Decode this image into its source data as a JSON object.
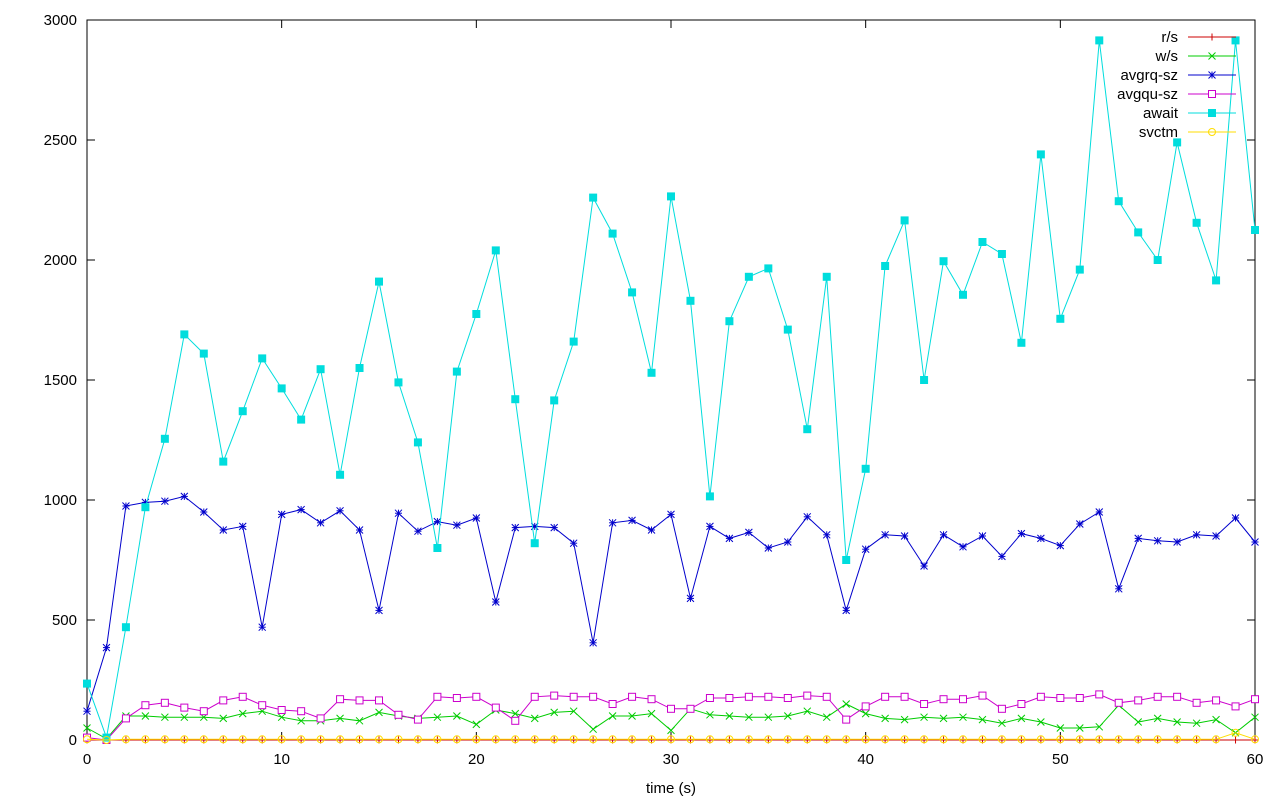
{
  "chart_data": {
    "type": "line",
    "title": "",
    "xlabel": "time (s)",
    "ylabel": "",
    "xlim": [
      0,
      60
    ],
    "ylim": [
      0,
      3000
    ],
    "x_ticks": [
      0,
      10,
      20,
      30,
      40,
      50,
      60
    ],
    "y_ticks": [
      0,
      500,
      1000,
      1500,
      2000,
      2500,
      3000
    ],
    "grid": false,
    "legend_position": "top-right",
    "x": [
      0,
      1,
      2,
      3,
      4,
      5,
      6,
      7,
      8,
      9,
      10,
      11,
      12,
      13,
      14,
      15,
      16,
      17,
      18,
      19,
      20,
      21,
      22,
      23,
      24,
      25,
      26,
      27,
      28,
      29,
      30,
      31,
      32,
      33,
      34,
      35,
      36,
      37,
      38,
      39,
      40,
      41,
      42,
      43,
      44,
      45,
      46,
      47,
      48,
      49,
      50,
      51,
      52,
      53,
      54,
      55,
      56,
      57,
      58,
      59,
      60
    ],
    "series": [
      {
        "name": "r/s",
        "color": "#cc0000",
        "marker": "plus",
        "values": [
          0,
          0,
          0,
          0,
          0,
          0,
          0,
          0,
          0,
          0,
          0,
          0,
          0,
          0,
          0,
          0,
          0,
          0,
          0,
          0,
          0,
          0,
          0,
          0,
          0,
          0,
          0,
          0,
          0,
          0,
          0,
          0,
          0,
          0,
          0,
          0,
          0,
          0,
          0,
          0,
          0,
          0,
          0,
          0,
          0,
          0,
          0,
          0,
          0,
          0,
          0,
          0,
          0,
          0,
          0,
          0,
          0,
          0,
          0,
          0,
          0
        ]
      },
      {
        "name": "w/s",
        "color": "#00cc00",
        "marker": "x",
        "values": [
          50,
          5,
          100,
          100,
          95,
          95,
          95,
          90,
          110,
          120,
          95,
          80,
          80,
          90,
          80,
          115,
          100,
          90,
          95,
          100,
          65,
          125,
          110,
          90,
          115,
          120,
          45,
          100,
          100,
          110,
          40,
          130,
          105,
          100,
          95,
          95,
          100,
          120,
          95,
          150,
          110,
          90,
          85,
          95,
          90,
          95,
          85,
          70,
          90,
          75,
          50,
          50,
          55,
          145,
          75,
          90,
          75,
          70,
          85,
          30,
          95
        ]
      },
      {
        "name": "avgrq-sz",
        "color": "#0000cc",
        "marker": "star",
        "values": [
          120,
          385,
          975,
          990,
          995,
          1015,
          950,
          875,
          890,
          470,
          940,
          960,
          905,
          955,
          875,
          540,
          945,
          870,
          910,
          895,
          925,
          575,
          885,
          890,
          885,
          820,
          405,
          905,
          915,
          875,
          940,
          590,
          890,
          840,
          865,
          800,
          825,
          930,
          855,
          540,
          795,
          855,
          850,
          725,
          855,
          805,
          850,
          765,
          860,
          840,
          810,
          900,
          950,
          630,
          840,
          830,
          825,
          855,
          850,
          925,
          825
        ]
      },
      {
        "name": "avgqu-sz",
        "color": "#cc00cc",
        "marker": "open-square",
        "values": [
          10,
          0,
          90,
          145,
          155,
          135,
          120,
          165,
          180,
          145,
          125,
          120,
          90,
          170,
          165,
          165,
          105,
          85,
          180,
          175,
          180,
          135,
          80,
          180,
          185,
          180,
          180,
          150,
          180,
          170,
          130,
          130,
          175,
          175,
          180,
          180,
          175,
          185,
          180,
          85,
          140,
          180,
          180,
          150,
          170,
          170,
          185,
          130,
          150,
          180,
          175,
          175,
          190,
          155,
          165,
          180,
          180,
          155,
          165,
          140,
          170
        ]
      },
      {
        "name": "await",
        "color": "#00dddd",
        "marker": "filled-square",
        "values": [
          235,
          10,
          470,
          970,
          1255,
          1690,
          1610,
          1160,
          1370,
          1590,
          1465,
          1335,
          1545,
          1105,
          1550,
          1910,
          1490,
          1240,
          800,
          1535,
          1775,
          2040,
          1420,
          820,
          1415,
          1660,
          2260,
          2110,
          1865,
          1530,
          2265,
          1830,
          1015,
          1745,
          1930,
          1965,
          1710,
          1295,
          1930,
          750,
          1130,
          1975,
          2165,
          1500,
          1995,
          1855,
          2075,
          2025,
          1655,
          2440,
          1755,
          1960,
          2915,
          2245,
          2115,
          2000,
          2490,
          2155,
          1915,
          2915,
          2125
        ]
      },
      {
        "name": "svctm",
        "color": "#ffdd00",
        "marker": "open-circle",
        "values": [
          3,
          0,
          3,
          3,
          3,
          3,
          3,
          3,
          3,
          3,
          3,
          3,
          3,
          3,
          3,
          3,
          3,
          3,
          3,
          3,
          3,
          3,
          3,
          3,
          3,
          3,
          3,
          3,
          3,
          3,
          3,
          3,
          3,
          3,
          3,
          3,
          3,
          3,
          3,
          3,
          3,
          3,
          3,
          3,
          3,
          3,
          3,
          3,
          3,
          3,
          3,
          3,
          3,
          3,
          3,
          3,
          3,
          3,
          3,
          30,
          3
        ]
      }
    ]
  }
}
